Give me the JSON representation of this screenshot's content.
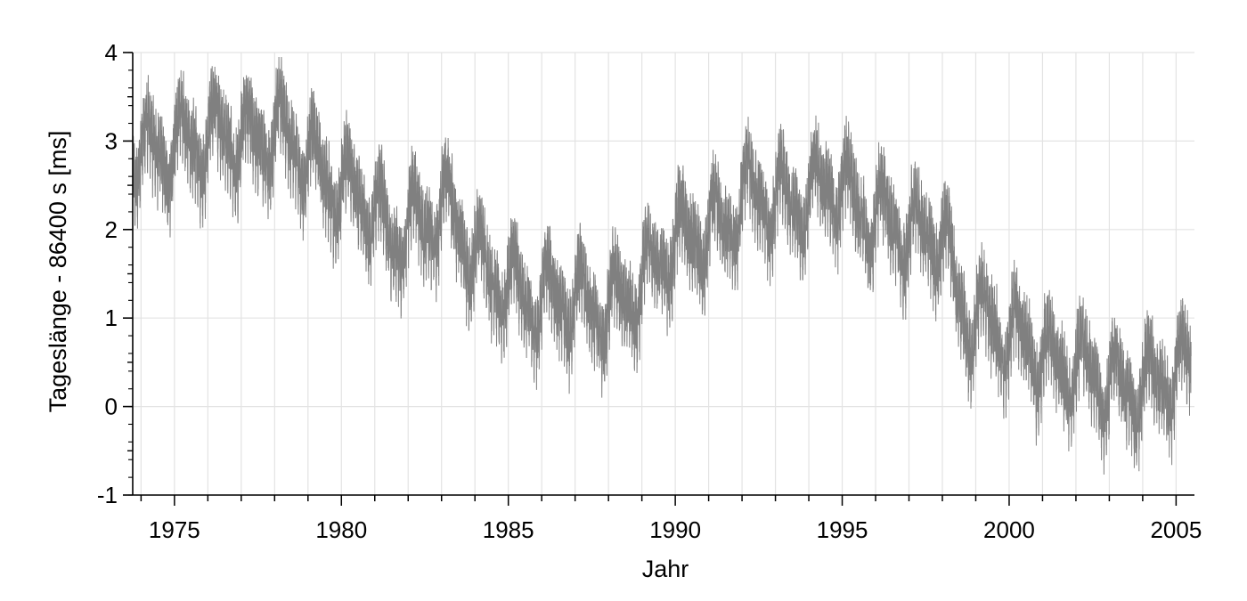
{
  "chart_data": {
    "type": "line",
    "title": "",
    "xlabel": "Jahr",
    "ylabel": "Tageslänge - 86400 s  [ms]",
    "xlim": [
      1973.75,
      2005.55
    ],
    "ylim": [
      -1,
      4
    ],
    "x_ticks": [
      1975,
      1980,
      1985,
      1990,
      1995,
      2000,
      2005
    ],
    "x_tick_labels": [
      "1975",
      "1980",
      "1985",
      "1990",
      "1995",
      "2000",
      "2005"
    ],
    "y_ticks": [
      -1,
      0,
      1,
      2,
      3,
      4
    ],
    "y_tick_labels": [
      "-1",
      "0",
      "1",
      "2",
      "3",
      "4"
    ],
    "grid": true,
    "legend": "none",
    "series_color": "#808080",
    "series": [
      {
        "x": [
          1974.0,
          1974.5,
          1975.0,
          1975.5,
          1976.0,
          1976.5,
          1977.0,
          1977.5,
          1978.0,
          1978.5,
          1979.0,
          1979.5,
          1980.0,
          1980.5,
          1981.0,
          1981.5,
          1982.0,
          1982.5,
          1983.0,
          1983.5,
          1984.0,
          1984.5,
          1985.0,
          1985.5,
          1986.0,
          1986.5,
          1987.0,
          1987.5,
          1988.0,
          1988.5,
          1989.0,
          1989.5,
          1990.0,
          1990.5,
          1991.0,
          1991.5,
          1992.0,
          1992.5,
          1993.0,
          1993.5,
          1994.0,
          1994.5,
          1995.0,
          1995.5,
          1996.0,
          1996.5,
          1997.0,
          1997.5,
          1998.0,
          1998.5,
          1999.0,
          1999.5,
          2000.0,
          2000.5,
          2001.0,
          2001.5,
          2002.0,
          2002.5,
          2003.0,
          2003.5,
          2004.0,
          2004.5,
          2005.0,
          2005.4
        ],
        "values": [
          3.0,
          2.7,
          3.1,
          2.8,
          3.2,
          2.9,
          3.2,
          2.8,
          3.3,
          2.8,
          3.0,
          2.4,
          2.6,
          2.2,
          2.4,
          1.6,
          2.3,
          1.8,
          2.5,
          1.8,
          1.9,
          1.2,
          1.6,
          1.0,
          1.4,
          1.0,
          1.4,
          0.9,
          1.3,
          1.0,
          1.6,
          1.4,
          2.1,
          1.7,
          2.2,
          1.8,
          2.6,
          2.2,
          2.5,
          2.1,
          2.5,
          2.3,
          2.7,
          2.0,
          2.3,
          1.9,
          2.1,
          1.8,
          2.1,
          1.0,
          1.1,
          0.8,
          0.9,
          0.6,
          0.7,
          0.3,
          0.6,
          0.2,
          0.4,
          0.0,
          0.4,
          0.1,
          0.6,
          0.3
        ]
      }
    ]
  }
}
